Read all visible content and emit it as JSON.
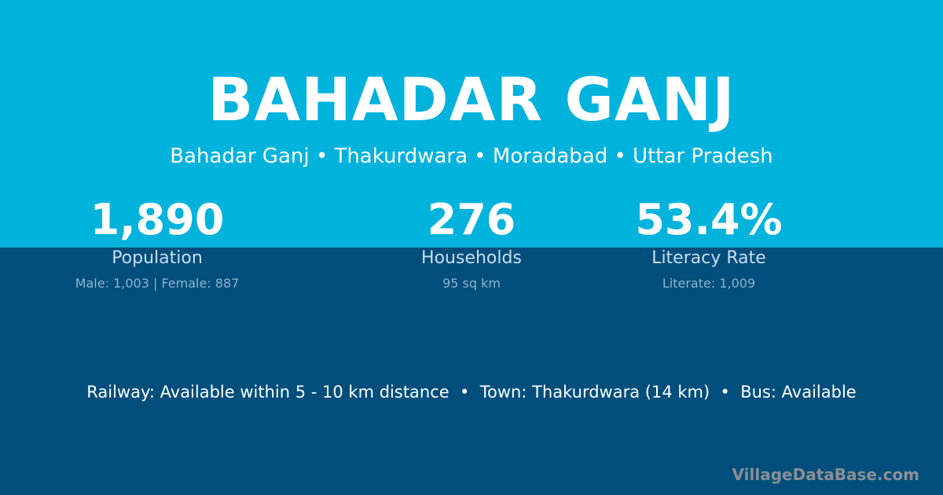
{
  "title": "BAHADAR GANJ",
  "breadcrumb": "Bahadar Ganj • Thakurdwara • Moradabad • Uttar Pradesh",
  "stats": [
    {
      "value": "1,890",
      "label": "Population",
      "detail": "Male: 1,003 | Female: 887"
    },
    {
      "value": "276",
      "label": "Households",
      "detail": "95 sq km"
    },
    {
      "value": "53.4%",
      "label": "Literacy Rate",
      "detail": "Literate: 1,009"
    }
  ],
  "info_line": "Railway: Available within 5 - 10 km distance  •  Town: Thakurdwara (14 km)  •  Bus: Available",
  "brand": "VillageDataBase.com",
  "colors": {
    "top_band": "#00b3dd",
    "bottom_band": "#004e7b"
  }
}
